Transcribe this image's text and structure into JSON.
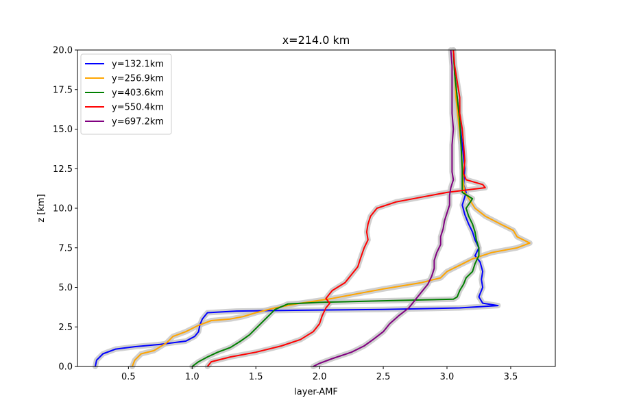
{
  "chart_data": {
    "type": "line",
    "title": "x=214.0 km",
    "xlabel": "layer-AMF",
    "ylabel": "z [km]",
    "xlim": [
      0.1,
      3.85
    ],
    "ylim": [
      0,
      20
    ],
    "x_ticks": [
      0.5,
      1.0,
      1.5,
      2.0,
      2.5,
      3.0,
      3.5
    ],
    "x_tick_labels": [
      "0.5",
      "1.0",
      "1.5",
      "2.0",
      "2.5",
      "3.0",
      "3.5"
    ],
    "y_ticks": [
      0,
      2.5,
      5,
      7.5,
      10,
      12.5,
      15,
      17.5,
      20
    ],
    "y_tick_labels": [
      "0.0",
      "2.5",
      "5.0",
      "7.5",
      "10.0",
      "12.5",
      "15.0",
      "17.5",
      "20.0"
    ],
    "grid": false,
    "legend_position": "top-left",
    "uncertainty_band_color": "#c8c8c8",
    "series": [
      {
        "name": "y=132.1km",
        "color": "#0000ff",
        "points": [
          [
            0.24,
            0
          ],
          [
            0.25,
            0.4
          ],
          [
            0.3,
            0.8
          ],
          [
            0.4,
            1.1
          ],
          [
            0.55,
            1.25
          ],
          [
            0.75,
            1.4
          ],
          [
            0.95,
            1.6
          ],
          [
            1.02,
            1.9
          ],
          [
            1.05,
            2.2
          ],
          [
            1.06,
            2.6
          ],
          [
            1.08,
            3.0
          ],
          [
            1.12,
            3.4
          ],
          [
            1.35,
            3.5
          ],
          [
            1.8,
            3.55
          ],
          [
            2.5,
            3.6
          ],
          [
            3.1,
            3.7
          ],
          [
            3.4,
            3.85
          ],
          [
            3.28,
            4.0
          ],
          [
            3.25,
            4.4
          ],
          [
            3.28,
            5.0
          ],
          [
            3.27,
            5.5
          ],
          [
            3.28,
            6.0
          ],
          [
            3.26,
            6.6
          ],
          [
            3.22,
            7.0
          ],
          [
            3.25,
            7.5
          ],
          [
            3.22,
            8.0
          ],
          [
            3.2,
            8.5
          ],
          [
            3.17,
            9.0
          ],
          [
            3.14,
            9.6
          ],
          [
            3.12,
            10.2
          ],
          [
            3.15,
            11.0
          ],
          [
            3.13,
            11.5
          ],
          [
            3.14,
            12.5
          ],
          [
            3.12,
            14.0
          ],
          [
            3.1,
            15.5
          ],
          [
            3.08,
            17.0
          ],
          [
            3.06,
            18.5
          ],
          [
            3.05,
            20.0
          ]
        ]
      },
      {
        "name": "y=256.9km",
        "color": "#ffa500",
        "points": [
          [
            0.53,
            0
          ],
          [
            0.55,
            0.4
          ],
          [
            0.6,
            0.8
          ],
          [
            0.7,
            1.0
          ],
          [
            0.8,
            1.5
          ],
          [
            0.85,
            1.9
          ],
          [
            0.95,
            2.2
          ],
          [
            1.05,
            2.6
          ],
          [
            1.15,
            2.9
          ],
          [
            1.3,
            3.0
          ],
          [
            1.4,
            3.15
          ],
          [
            1.5,
            3.4
          ],
          [
            1.65,
            3.7
          ],
          [
            1.85,
            4.0
          ],
          [
            2.1,
            4.3
          ],
          [
            2.3,
            4.6
          ],
          [
            2.5,
            4.9
          ],
          [
            2.8,
            5.3
          ],
          [
            2.95,
            5.6
          ],
          [
            3.0,
            6.0
          ],
          [
            3.1,
            6.4
          ],
          [
            3.2,
            6.8
          ],
          [
            3.35,
            7.2
          ],
          [
            3.55,
            7.5
          ],
          [
            3.65,
            7.8
          ],
          [
            3.55,
            8.2
          ],
          [
            3.52,
            8.6
          ],
          [
            3.42,
            9.0
          ],
          [
            3.3,
            9.5
          ],
          [
            3.22,
            10.0
          ],
          [
            3.18,
            10.5
          ],
          [
            3.14,
            11.0
          ],
          [
            3.13,
            11.5
          ],
          [
            3.12,
            12.5
          ],
          [
            3.11,
            14.0
          ],
          [
            3.09,
            15.5
          ],
          [
            3.07,
            17.0
          ],
          [
            3.06,
            18.5
          ],
          [
            3.05,
            20.0
          ]
        ]
      },
      {
        "name": "y=403.6km",
        "color": "#008000",
        "points": [
          [
            1.0,
            0
          ],
          [
            1.05,
            0.3
          ],
          [
            1.12,
            0.6
          ],
          [
            1.2,
            0.9
          ],
          [
            1.3,
            1.2
          ],
          [
            1.38,
            1.6
          ],
          [
            1.45,
            2.0
          ],
          [
            1.5,
            2.4
          ],
          [
            1.55,
            2.8
          ],
          [
            1.6,
            3.2
          ],
          [
            1.65,
            3.6
          ],
          [
            1.75,
            3.95
          ],
          [
            2.0,
            4.05
          ],
          [
            2.5,
            4.15
          ],
          [
            3.05,
            4.25
          ],
          [
            3.08,
            4.4
          ],
          [
            3.1,
            4.8
          ],
          [
            3.13,
            5.2
          ],
          [
            3.15,
            5.6
          ],
          [
            3.2,
            6.0
          ],
          [
            3.22,
            6.5
          ],
          [
            3.25,
            7.0
          ],
          [
            3.25,
            7.5
          ],
          [
            3.23,
            8.0
          ],
          [
            3.22,
            8.5
          ],
          [
            3.2,
            9.0
          ],
          [
            3.17,
            9.5
          ],
          [
            3.15,
            10.0
          ],
          [
            3.2,
            10.6
          ],
          [
            3.12,
            11.0
          ],
          [
            3.12,
            11.5
          ],
          [
            3.12,
            12.5
          ],
          [
            3.11,
            14.0
          ],
          [
            3.1,
            15.5
          ],
          [
            3.08,
            17.0
          ],
          [
            3.06,
            18.5
          ],
          [
            3.05,
            20.0
          ]
        ]
      },
      {
        "name": "y=550.4km",
        "color": "#ff0000",
        "points": [
          [
            1.12,
            0
          ],
          [
            1.15,
            0.3
          ],
          [
            1.3,
            0.6
          ],
          [
            1.5,
            0.9
          ],
          [
            1.7,
            1.3
          ],
          [
            1.85,
            1.7
          ],
          [
            1.95,
            2.2
          ],
          [
            2.0,
            2.7
          ],
          [
            2.02,
            3.2
          ],
          [
            2.05,
            3.7
          ],
          [
            2.08,
            4.0
          ],
          [
            2.05,
            4.3
          ],
          [
            2.1,
            4.8
          ],
          [
            2.2,
            5.3
          ],
          [
            2.25,
            5.8
          ],
          [
            2.3,
            6.3
          ],
          [
            2.32,
            6.8
          ],
          [
            2.35,
            7.5
          ],
          [
            2.38,
            8.0
          ],
          [
            2.37,
            8.5
          ],
          [
            2.38,
            9.0
          ],
          [
            2.4,
            9.5
          ],
          [
            2.45,
            10.0
          ],
          [
            2.6,
            10.4
          ],
          [
            2.8,
            10.7
          ],
          [
            3.0,
            11.0
          ],
          [
            3.3,
            11.3
          ],
          [
            3.28,
            11.5
          ],
          [
            3.15,
            11.8
          ],
          [
            3.13,
            12.2
          ],
          [
            3.14,
            13.0
          ],
          [
            3.13,
            14.0
          ],
          [
            3.12,
            15.0
          ],
          [
            3.1,
            16.0
          ],
          [
            3.1,
            17.0
          ],
          [
            3.08,
            18.0
          ],
          [
            3.06,
            19.0
          ],
          [
            3.05,
            20.0
          ]
        ]
      },
      {
        "name": "y=697.2km",
        "color": "#800080",
        "points": [
          [
            1.95,
            0
          ],
          [
            2.0,
            0.2
          ],
          [
            2.1,
            0.5
          ],
          [
            2.25,
            0.9
          ],
          [
            2.35,
            1.3
          ],
          [
            2.42,
            1.7
          ],
          [
            2.5,
            2.2
          ],
          [
            2.55,
            2.7
          ],
          [
            2.62,
            3.2
          ],
          [
            2.7,
            3.7
          ],
          [
            2.75,
            4.2
          ],
          [
            2.8,
            4.7
          ],
          [
            2.85,
            5.2
          ],
          [
            2.88,
            5.7
          ],
          [
            2.9,
            6.2
          ],
          [
            2.9,
            6.7
          ],
          [
            2.92,
            7.2
          ],
          [
            2.95,
            7.7
          ],
          [
            2.95,
            8.2
          ],
          [
            2.97,
            8.7
          ],
          [
            2.98,
            9.2
          ],
          [
            3.0,
            9.7
          ],
          [
            3.02,
            10.2
          ],
          [
            3.02,
            10.8
          ],
          [
            3.03,
            11.3
          ],
          [
            3.05,
            11.8
          ],
          [
            3.04,
            12.3
          ],
          [
            3.04,
            13.0
          ],
          [
            3.04,
            14.0
          ],
          [
            3.05,
            15.0
          ],
          [
            3.04,
            16.0
          ],
          [
            3.04,
            17.0
          ],
          [
            3.04,
            18.0
          ],
          [
            3.04,
            19.0
          ],
          [
            3.03,
            20.0
          ]
        ]
      }
    ]
  }
}
